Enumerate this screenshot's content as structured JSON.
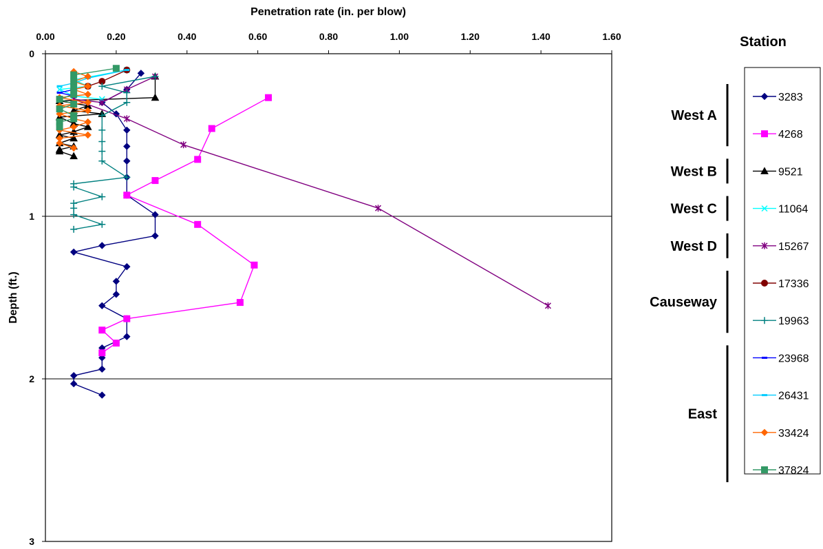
{
  "chart_data": {
    "type": "line",
    "title": "",
    "xlabel": "Penetration rate (in. per blow)",
    "ylabel": "Depth (ft.)",
    "xlim": [
      0,
      1.6
    ],
    "ylim": [
      0,
      3
    ],
    "y_inverted": true,
    "x_axis_position": "top",
    "x_ticks": [
      "0.00",
      "0.20",
      "0.40",
      "0.60",
      "0.80",
      "1.00",
      "1.20",
      "1.40",
      "1.60"
    ],
    "y_ticks": [
      "0",
      "1",
      "2",
      "3"
    ],
    "grid": "horizontal major lines only",
    "legend_title": "Station",
    "legend_position": "right",
    "series": [
      {
        "name": "3283",
        "color": "#000080",
        "marker": "diamond",
        "points": [
          [
            0.27,
            0.12
          ],
          [
            0.23,
            0.22
          ],
          [
            0.16,
            0.3
          ],
          [
            0.2,
            0.37
          ],
          [
            0.23,
            0.47
          ],
          [
            0.23,
            0.57
          ],
          [
            0.23,
            0.66
          ],
          [
            0.23,
            0.76
          ],
          [
            0.23,
            0.87
          ],
          [
            0.31,
            0.99
          ],
          [
            0.31,
            1.12
          ],
          [
            0.16,
            1.18
          ],
          [
            0.08,
            1.22
          ],
          [
            0.23,
            1.31
          ],
          [
            0.2,
            1.4
          ],
          [
            0.2,
            1.48
          ],
          [
            0.16,
            1.55
          ],
          [
            0.23,
            1.63
          ],
          [
            0.23,
            1.74
          ],
          [
            0.16,
            1.81
          ],
          [
            0.16,
            1.87
          ],
          [
            0.16,
            1.94
          ],
          [
            0.08,
            1.98
          ],
          [
            0.08,
            2.03
          ],
          [
            0.16,
            2.1
          ]
        ]
      },
      {
        "name": "4268",
        "color": "#FF00FF",
        "marker": "square",
        "points": [
          [
            0.63,
            0.27
          ],
          [
            0.47,
            0.46
          ],
          [
            0.43,
            0.65
          ],
          [
            0.31,
            0.78
          ],
          [
            0.23,
            0.87
          ],
          [
            0.43,
            1.05
          ],
          [
            0.59,
            1.3
          ],
          [
            0.55,
            1.53
          ],
          [
            0.23,
            1.63
          ],
          [
            0.16,
            1.7
          ],
          [
            0.2,
            1.78
          ],
          [
            0.16,
            1.84
          ]
        ]
      },
      {
        "name": "9521",
        "color": "#000000",
        "marker": "triangle",
        "points": [
          [
            0.31,
            0.14
          ],
          [
            0.31,
            0.27
          ],
          [
            0.04,
            0.29
          ],
          [
            0.12,
            0.32
          ],
          [
            0.08,
            0.35
          ],
          [
            0.16,
            0.37
          ],
          [
            0.04,
            0.39
          ],
          [
            0.08,
            0.43
          ],
          [
            0.12,
            0.45
          ],
          [
            0.08,
            0.48
          ],
          [
            0.04,
            0.5
          ],
          [
            0.08,
            0.52
          ],
          [
            0.04,
            0.55
          ],
          [
            0.08,
            0.57
          ],
          [
            0.04,
            0.59
          ],
          [
            0.04,
            0.6
          ],
          [
            0.08,
            0.63
          ]
        ]
      },
      {
        "name": "11064",
        "color": "#00FFFF",
        "marker": "x",
        "points": [
          [
            0.23,
            0.1
          ],
          [
            0.08,
            0.16
          ],
          [
            0.12,
            0.2
          ],
          [
            0.04,
            0.22
          ],
          [
            0.08,
            0.26
          ],
          [
            0.16,
            0.28
          ]
        ]
      },
      {
        "name": "15267",
        "color": "#800080",
        "marker": "asterisk",
        "points": [
          [
            0.31,
            0.14
          ],
          [
            0.23,
            0.22
          ],
          [
            0.16,
            0.3
          ],
          [
            0.08,
            0.28
          ],
          [
            0.23,
            0.4
          ],
          [
            0.39,
            0.56
          ],
          [
            0.94,
            0.95
          ],
          [
            1.42,
            1.55
          ]
        ]
      },
      {
        "name": "17336",
        "color": "#800000",
        "marker": "circle",
        "points": [
          [
            0.23,
            0.1
          ],
          [
            0.16,
            0.17
          ],
          [
            0.12,
            0.2
          ],
          [
            0.08,
            0.22
          ],
          [
            0.08,
            0.25
          ],
          [
            0.04,
            0.28
          ]
        ]
      },
      {
        "name": "19963",
        "color": "#008080",
        "marker": "plus",
        "points": [
          [
            0.31,
            0.14
          ],
          [
            0.16,
            0.2
          ],
          [
            0.23,
            0.24
          ],
          [
            0.23,
            0.3
          ],
          [
            0.16,
            0.38
          ],
          [
            0.16,
            0.47
          ],
          [
            0.16,
            0.54
          ],
          [
            0.16,
            0.6
          ],
          [
            0.16,
            0.66
          ],
          [
            0.23,
            0.76
          ],
          [
            0.08,
            0.8
          ],
          [
            0.08,
            0.82
          ],
          [
            0.16,
            0.88
          ],
          [
            0.08,
            0.92
          ],
          [
            0.08,
            0.95
          ],
          [
            0.08,
            0.99
          ],
          [
            0.16,
            1.05
          ],
          [
            0.08,
            1.08
          ]
        ]
      },
      {
        "name": "23968",
        "color": "#0000FF",
        "marker": "dash",
        "points": [
          [
            0.08,
            0.22
          ],
          [
            0.04,
            0.24
          ],
          [
            0.08,
            0.26
          ]
        ]
      },
      {
        "name": "26431",
        "color": "#00CCFF",
        "marker": "dash",
        "points": [
          [
            0.23,
            0.1
          ],
          [
            0.12,
            0.15
          ],
          [
            0.08,
            0.18
          ],
          [
            0.04,
            0.2
          ]
        ]
      },
      {
        "name": "33424",
        "color": "#FF6600",
        "marker": "diamond",
        "points": [
          [
            0.08,
            0.11
          ],
          [
            0.12,
            0.14
          ],
          [
            0.08,
            0.17
          ],
          [
            0.12,
            0.2
          ],
          [
            0.08,
            0.22
          ],
          [
            0.12,
            0.25
          ],
          [
            0.04,
            0.27
          ],
          [
            0.12,
            0.3
          ],
          [
            0.04,
            0.32
          ],
          [
            0.12,
            0.35
          ],
          [
            0.04,
            0.37
          ],
          [
            0.08,
            0.4
          ],
          [
            0.12,
            0.42
          ],
          [
            0.08,
            0.45
          ],
          [
            0.04,
            0.47
          ],
          [
            0.12,
            0.5
          ],
          [
            0.04,
            0.52
          ],
          [
            0.04,
            0.55
          ],
          [
            0.08,
            0.58
          ]
        ]
      },
      {
        "name": "37824",
        "color": "#339966",
        "marker": "square",
        "points": [
          [
            0.2,
            0.09
          ],
          [
            0.08,
            0.13
          ],
          [
            0.08,
            0.17
          ],
          [
            0.08,
            0.21
          ],
          [
            0.08,
            0.25
          ],
          [
            0.04,
            0.28
          ],
          [
            0.08,
            0.31
          ],
          [
            0.04,
            0.34
          ],
          [
            0.08,
            0.38
          ],
          [
            0.08,
            0.4
          ],
          [
            0.04,
            0.42
          ],
          [
            0.04,
            0.45
          ]
        ]
      }
    ],
    "groups": [
      {
        "label": "West A",
        "stations": [
          "3283",
          "4268"
        ]
      },
      {
        "label": "West B",
        "stations": [
          "9521"
        ]
      },
      {
        "label": "West C",
        "stations": [
          "11064"
        ]
      },
      {
        "label": "West D",
        "stations": [
          "15267"
        ]
      },
      {
        "label": "Causeway",
        "stations": [
          "17336",
          "19963"
        ]
      },
      {
        "label": "East",
        "stations": [
          "23968",
          "26431",
          "33424",
          "37824"
        ]
      }
    ]
  }
}
